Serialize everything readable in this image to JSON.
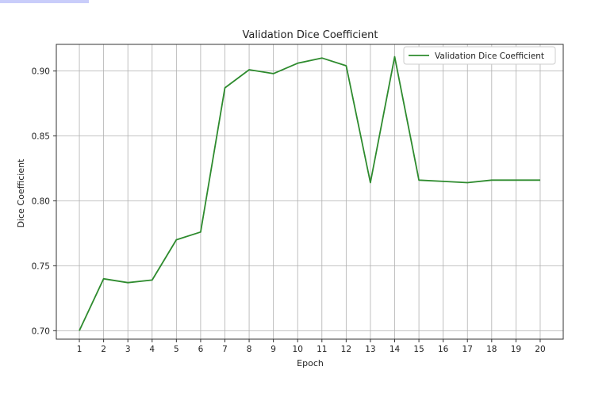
{
  "chart_data": {
    "type": "line",
    "title": "Validation Dice Coefficient",
    "xlabel": "Epoch",
    "ylabel": "Dice Coefficient",
    "x": [
      1,
      2,
      3,
      4,
      5,
      6,
      7,
      8,
      9,
      10,
      11,
      12,
      13,
      14,
      15,
      16,
      17,
      18,
      19,
      20
    ],
    "xticks": [
      "1",
      "2",
      "3",
      "4",
      "5",
      "6",
      "7",
      "8",
      "9",
      "10",
      "11",
      "12",
      "13",
      "14",
      "15",
      "16",
      "17",
      "18",
      "19",
      "20"
    ],
    "yticks": [
      "0.70",
      "0.75",
      "0.80",
      "0.85",
      "0.90"
    ],
    "ytick_values": [
      0.7,
      0.75,
      0.8,
      0.85,
      0.9
    ],
    "xlim": [
      0.05,
      20.95
    ],
    "ylim": [
      0.6935,
      0.9205
    ],
    "grid": true,
    "legend_position": "top-right",
    "series": [
      {
        "name": "Validation Dice Coefficient",
        "color": "#2e8b2e",
        "values": [
          0.7,
          0.74,
          0.737,
          0.739,
          0.77,
          0.776,
          0.887,
          0.901,
          0.898,
          0.906,
          0.91,
          0.904,
          0.814,
          0.911,
          0.816,
          0.815,
          0.814,
          0.816,
          0.816,
          0.816
        ]
      }
    ]
  }
}
